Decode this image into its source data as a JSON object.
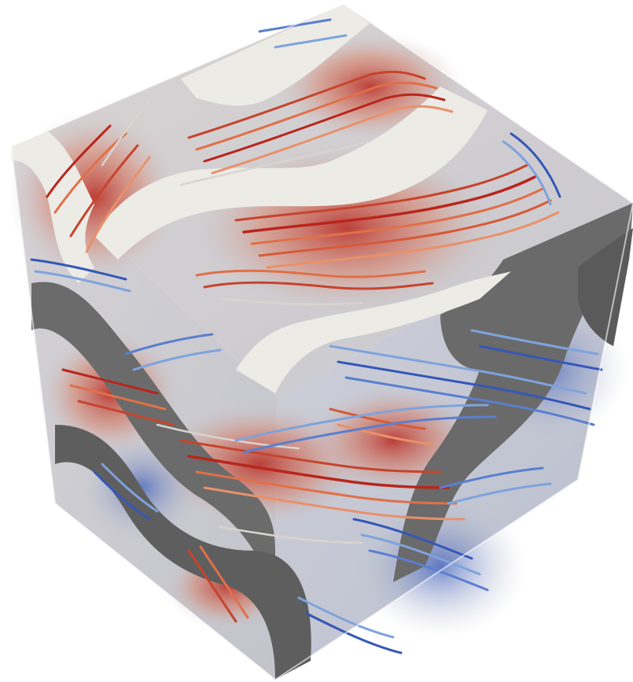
{
  "scene": {
    "subject": "streamline-render",
    "background_color": "#ffffff",
    "colors": {
      "solid_top": "#ecebe6",
      "solid_side": "#6e6e6e",
      "solid_side_dark": "#5a5a5a",
      "flow_hot": "#b8261d",
      "flow_warm": "#e0673a",
      "flow_neutral": "#d9d4cf",
      "flow_cool": "#7fa3dc",
      "flow_cold": "#3557b8",
      "face_haze": "#c9c9cf"
    }
  }
}
